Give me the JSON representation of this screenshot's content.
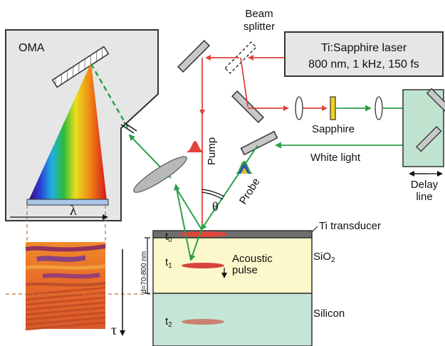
{
  "labels": {
    "oma": "OMA",
    "beam_splitter_line1": "Beam",
    "beam_splitter_line2": "splitter",
    "laser_line1": "Ti:Sapphire laser",
    "laser_line2": "800 nm, 1 kHz, 150 fs",
    "sapphire": "Sapphire",
    "white_light": "White light",
    "delay_line1": "Delay",
    "delay_line2": "line",
    "pump": "Pump",
    "probe": "Probe",
    "theta": "θ",
    "lambda": "λ",
    "tau": "τ",
    "t0": "t",
    "t0_sub": "0",
    "t1": "t",
    "t1_sub": "1",
    "t2": "t",
    "t2_sub": "2",
    "acoustic_line1": "Acoustic",
    "acoustic_line2": "pulse",
    "thickness": "d=70-800 nm",
    "ti_transducer": "Ti transducer",
    "sio2": "SiO",
    "sio2_sub": "2",
    "silicon": "Silicon"
  },
  "colors": {
    "pump_beam": "#e0443c",
    "probe_beam": "#2da04a",
    "oma_box": "#e6e6e6",
    "laser_box": "#e6e6e6",
    "delay_box": "#bfe3cf",
    "ti_layer": "#6e6e6e",
    "sio2_layer": "#fdf8cc",
    "silicon_layer": "#c5e6d6",
    "sapphire_crystal": "#f2d21b",
    "guide_lines": "#c0753a"
  }
}
